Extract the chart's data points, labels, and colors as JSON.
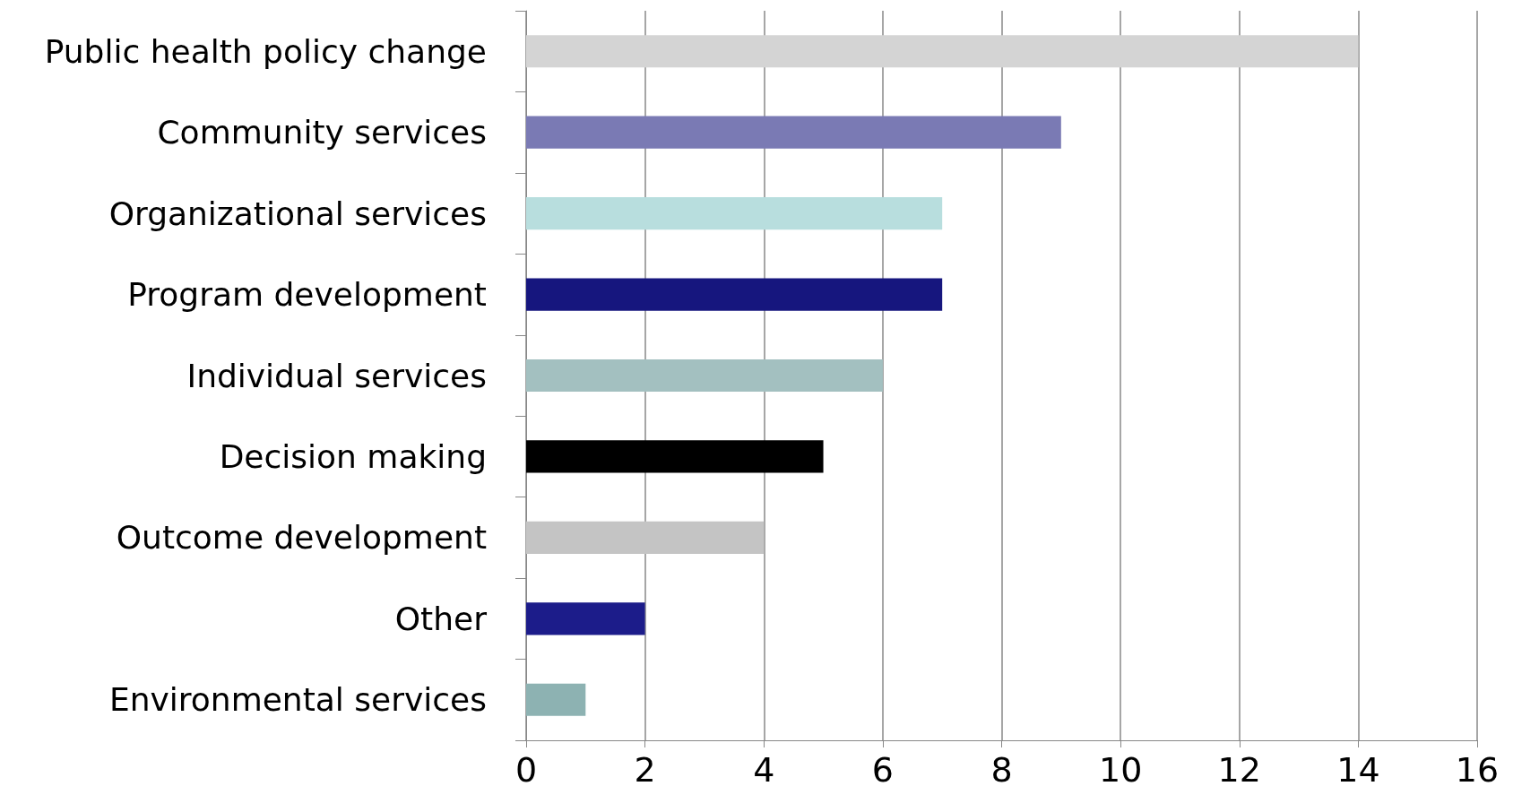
{
  "chart_data": {
    "type": "bar",
    "orientation": "horizontal",
    "categories": [
      "Public health policy change",
      "Community services",
      "Organizational services",
      "Program development",
      "Individual services",
      "Decision making",
      "Outcome development",
      "Other",
      "Environmental services"
    ],
    "values": [
      14,
      9,
      7,
      7,
      6,
      5,
      4,
      2,
      1
    ],
    "colors": [
      "#d4d4d4",
      "#7a7ab4",
      "#b8dede",
      "#16167e",
      "#a3c0c0",
      "#000000",
      "#c4c4c4",
      "#1c1c8a",
      "#8db2b2"
    ],
    "xlim": [
      0,
      16
    ],
    "xticks": [
      0,
      2,
      4,
      6,
      8,
      10,
      12,
      14,
      16
    ],
    "grid": "x"
  }
}
